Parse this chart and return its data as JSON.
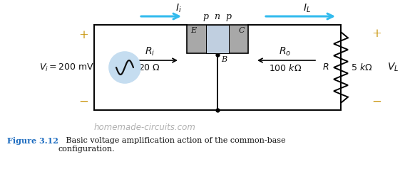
{
  "bg_color": "#ffffff",
  "fig_width": 5.75,
  "fig_height": 2.38,
  "dpi": 100,
  "watermark": "homemade-circuits.com",
  "watermark_color": "#b0b0b0",
  "caption_bold": "Figure 3.12",
  "caption_text": "   Basic voltage amplification action of the common-base\nconfiguration.",
  "caption_color": "#1a6abf",
  "arrow_color": "#33bbee",
  "wire_color": "#000000",
  "transistor_body_color": "#a8a8a8",
  "transistor_stripe_color": "#c0cfe0",
  "source_fill": "#c5ddf0",
  "source_edge": "#7aaabb",
  "plus_color": "#c8940a",
  "minus_color": "#c8940a"
}
